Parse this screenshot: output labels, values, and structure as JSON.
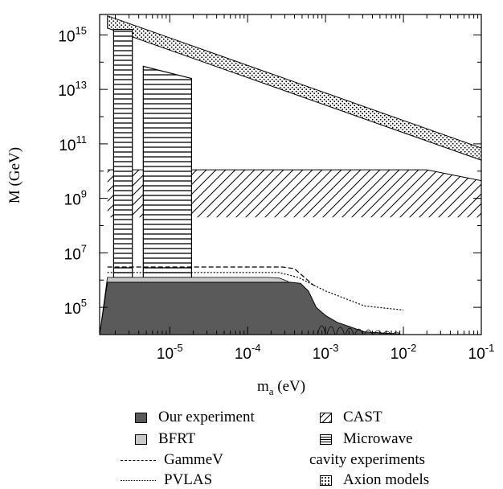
{
  "chart_data": {
    "type": "area",
    "title": "",
    "xlabel_main": "m",
    "xlabel_sub": "a",
    "xlabel_unit": " (eV)",
    "ylabel": "M (GeV)",
    "xscale": "log",
    "yscale": "log",
    "xlim_log10": [
      -5.9,
      -1.0
    ],
    "ylim_log10": [
      4.0,
      15.75
    ],
    "x_ticks": [
      {
        "exp": "-5",
        "log": -5
      },
      {
        "exp": "-4",
        "log": -4
      },
      {
        "exp": "-3",
        "log": -3
      },
      {
        "exp": "-2",
        "log": -2
      },
      {
        "exp": "-1",
        "log": -1
      }
    ],
    "y_ticks": [
      {
        "exp": "5",
        "log": 5
      },
      {
        "exp": "7",
        "log": 7
      },
      {
        "exp": "9",
        "log": 9
      },
      {
        "exp": "11",
        "log": 11
      },
      {
        "exp": "13",
        "log": 13
      },
      {
        "exp": "15",
        "log": 15
      }
    ],
    "grid": false,
    "legend_placement": "below",
    "series": [
      {
        "name": "Our experiment",
        "style": "dark-fill",
        "color": "#5a5a5a",
        "boundary_log": [
          [
            -5.8,
            5.92
          ],
          [
            -3.45,
            5.92
          ],
          [
            -3.32,
            5.88
          ],
          [
            -3.22,
            5.6
          ],
          [
            -3.12,
            5.0
          ],
          [
            -3.0,
            4.7
          ],
          [
            -2.85,
            4.45
          ],
          [
            -2.7,
            4.3
          ],
          [
            -2.5,
            4.1
          ],
          [
            -2.05,
            4.02
          ]
        ]
      },
      {
        "name": "BFRT",
        "style": "light-fill",
        "color": "#c8c8c8",
        "boundary_log": [
          [
            -5.8,
            6.1
          ],
          [
            -3.75,
            6.1
          ],
          [
            -3.6,
            6.08
          ],
          [
            -3.48,
            5.95
          ]
        ]
      },
      {
        "name": "GammeV",
        "style": "dashed",
        "points_log": [
          [
            -5.8,
            6.48
          ],
          [
            -3.55,
            6.48
          ],
          [
            -3.4,
            6.42
          ],
          [
            -3.15,
            5.8
          ]
        ]
      },
      {
        "name": "PVLAS",
        "style": "dotted",
        "points_log": [
          [
            -5.8,
            6.28
          ],
          [
            -3.6,
            6.28
          ],
          [
            -3.35,
            6.1
          ],
          [
            -3.0,
            5.6
          ],
          [
            -2.5,
            5.05
          ],
          [
            -2.0,
            4.9
          ]
        ]
      },
      {
        "name": "CAST",
        "style": "diagonal-hatch",
        "polygon_log": [
          [
            -5.8,
            10.05
          ],
          [
            -1.7,
            10.05
          ],
          [
            -1.0,
            9.65
          ],
          [
            -1.0,
            8.3
          ],
          [
            -5.8,
            8.3
          ]
        ]
      },
      {
        "name": "Microwave",
        "name_line2": "cavity experiments",
        "style": "horizontal-hatch",
        "rects_log": [
          {
            "x0": -5.72,
            "x1": -5.48,
            "y0": 6.0,
            "y1": 15.2
          },
          {
            "x0": -5.34,
            "x1": -4.72,
            "y0": 6.0,
            "y1": 12.9,
            "top_right_y": 13.4,
            "peak_y": 13.85
          }
        ]
      },
      {
        "name": "Axion models",
        "style": "dots",
        "band_log": {
          "upper": [
            [
              -5.8,
              15.7
            ],
            [
              -1.0,
              10.85
            ]
          ],
          "lower": [
            [
              -5.8,
              15.25
            ],
            [
              -1.0,
              10.4
            ]
          ]
        }
      }
    ]
  },
  "legend": {
    "items": [
      {
        "label": "Our experiment"
      },
      {
        "label": "BFRT"
      },
      {
        "label": "GammeV"
      },
      {
        "label": "PVLAS"
      },
      {
        "label": "CAST"
      },
      {
        "label": "Microwave"
      },
      {
        "label": "cavity experiments"
      },
      {
        "label": "Axion models"
      }
    ]
  }
}
